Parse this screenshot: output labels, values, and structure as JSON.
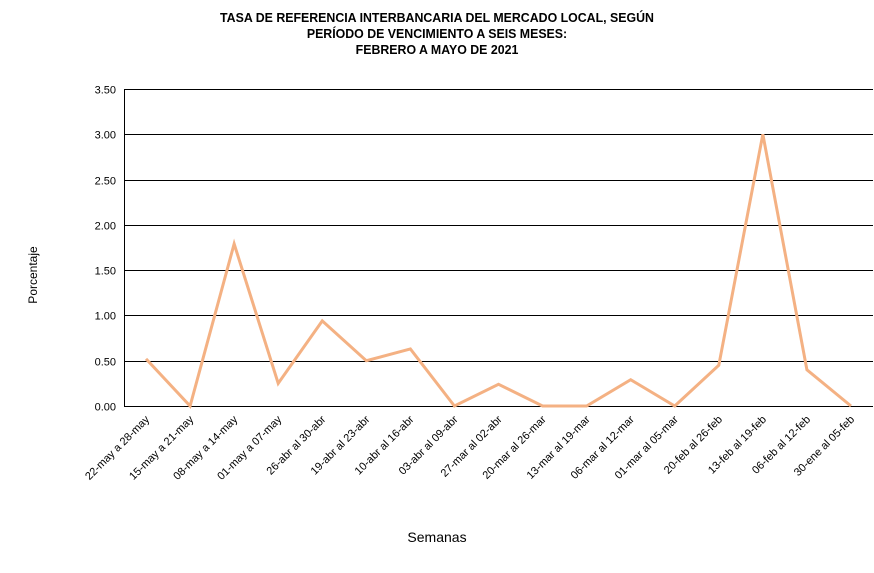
{
  "chart_data": {
    "type": "line",
    "title": [
      "TASA  DE REFERENCIA INTERBANCARIA DEL MERCADO LOCAL, SEGÚN",
      "PERÍODO DE VENCIMIENTO A SEIS MESES:",
      "FEBRERO A MAYO DE 2021"
    ],
    "xlabel": "Semanas",
    "ylabel": "Porcentaje",
    "ylim": [
      0,
      3.5
    ],
    "yticks": [
      "0.00",
      "0.50",
      "1.00",
      "1.50",
      "2.00",
      "2.50",
      "3.00",
      "3.50"
    ],
    "grid": true,
    "categories": [
      "22-may a 28-may",
      "15-may a 21-may",
      "08-may a 14-may",
      "01-may a 07-may",
      "26-abr al 30-abr",
      "19-abr al 23-abr",
      "10-abr al 16-abr",
      "03-abr al 09-abr",
      "27-mar al 02-abr",
      "20-mar al 26-mar",
      "13-mar al 19-mar",
      "06-mar al 12-mar",
      "01-mar al 05-mar",
      "20-feb al 26-feb",
      "13-feb al 19-feb",
      "06-feb al 12-feb",
      "30-ene al 05-feb"
    ],
    "series": [
      {
        "name": "Tasa",
        "color": "#f4b183",
        "values": [
          0.52,
          0,
          1.79,
          0.25,
          0.94,
          0.5,
          0.63,
          0,
          0.24,
          0,
          0,
          0.29,
          0,
          0.45,
          3.0,
          0.4,
          0
        ]
      }
    ]
  }
}
